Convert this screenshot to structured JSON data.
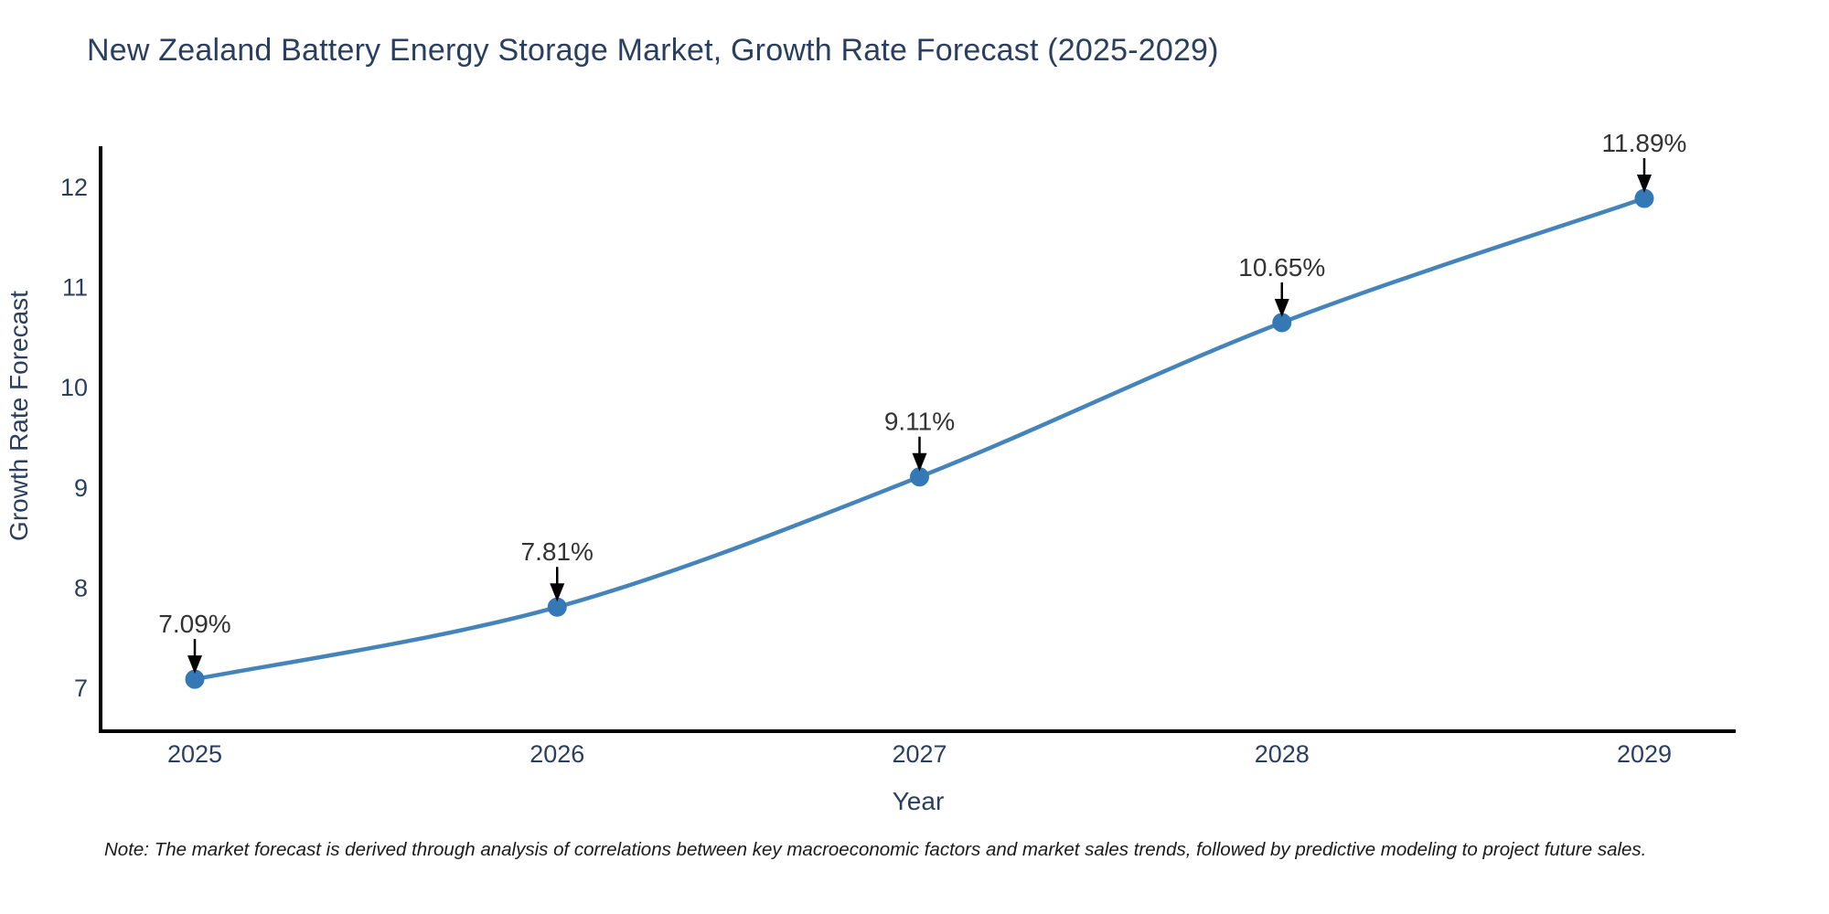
{
  "page": {
    "title": "New Zealand Battery Energy Storage Market, Growth Rate Forecast (2025-2029)",
    "note": "Note: The market forecast is derived through analysis of correlations between key macroeconomic factors and market sales trends, followed by predictive modeling to project future sales."
  },
  "chart_data": {
    "type": "line",
    "title": "New Zealand Battery Energy Storage Market, Growth Rate Forecast (2025-2029)",
    "xlabel": "Year",
    "ylabel": "Growth Rate Forecast",
    "categories": [
      "2025",
      "2026",
      "2027",
      "2028",
      "2029"
    ],
    "series": [
      {
        "name": "Growth Rate Forecast",
        "values": [
          7.09,
          7.81,
          9.11,
          10.65,
          11.89
        ]
      }
    ],
    "point_labels": [
      "7.09%",
      "7.81%",
      "9.11%",
      "10.65%",
      "11.89%"
    ],
    "yticks": [
      7,
      8,
      9,
      10,
      11,
      12
    ],
    "ylim": [
      6.57,
      12.41
    ],
    "grid": false,
    "legend": "none",
    "line_shape": "spline",
    "colors": {
      "line": "#4484ba",
      "marker": "#3478b5",
      "axis": "#000000",
      "tick_text": "#2a3f5f",
      "axis_label_text": "#2a3f5f",
      "annotation_text": "#333333",
      "arrow": "#000000",
      "background": "#ffffff"
    }
  }
}
